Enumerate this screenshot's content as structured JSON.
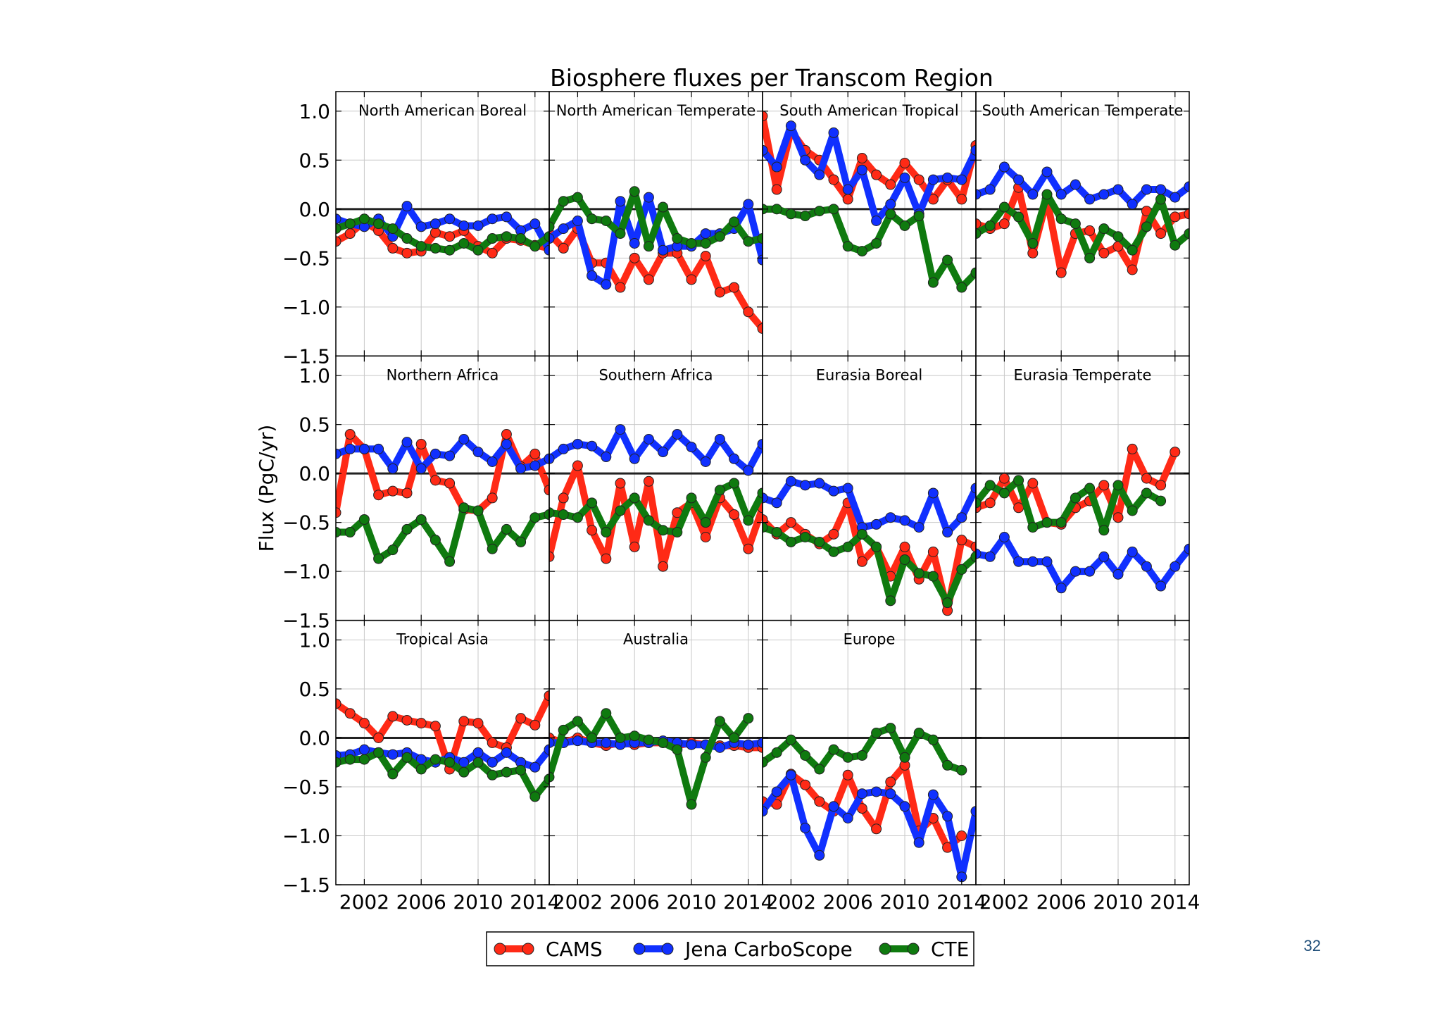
{
  "slide": {
    "page_number": "32"
  },
  "colors": {
    "cams": "#ff2a16",
    "jena": "#1030ff",
    "cte": "#0f7a0f",
    "grid": "#c8c8c8",
    "zero": "#222222"
  },
  "chart_data": {
    "type": "line",
    "title": "Biosphere fluxes per Transcom Region",
    "ylabel": "Flux (PgC/yr)",
    "xlabel": "",
    "ylim": [
      -1.5,
      1.2
    ],
    "xlim": [
      2000,
      2015
    ],
    "yticks": [
      1.0,
      0.5,
      0.0,
      -0.5,
      -1.0,
      -1.5
    ],
    "ytick_labels": [
      "1.0",
      "0.5",
      "0.0",
      "−0.5",
      "−1.0",
      "−1.5"
    ],
    "xticks": [
      2002,
      2006,
      2010,
      2014
    ],
    "xtick_labels": [
      "2002",
      "2006",
      "2010",
      "2014"
    ],
    "grid": true,
    "legend_position": "bottom-center",
    "series_names": [
      "CAMS",
      "Jena CarboScope",
      "CTE"
    ],
    "years": [
      2000,
      2001,
      2002,
      2003,
      2004,
      2005,
      2006,
      2007,
      2008,
      2009,
      2010,
      2011,
      2012,
      2013,
      2014,
      2015
    ],
    "panels": [
      {
        "title": "North American Boreal",
        "series": {
          "CAMS": [
            -0.33,
            -0.25,
            -0.13,
            -0.22,
            -0.4,
            -0.45,
            -0.43,
            -0.24,
            -0.28,
            -0.22,
            -0.38,
            -0.45,
            -0.3,
            -0.32,
            -0.37,
            -0.4
          ],
          "Jena CarboScope": [
            -0.1,
            -0.15,
            -0.18,
            -0.1,
            -0.28,
            0.03,
            -0.18,
            -0.15,
            -0.1,
            -0.17,
            -0.17,
            -0.1,
            -0.08,
            -0.22,
            -0.15,
            -0.42
          ],
          "CTE": [
            -0.2,
            -0.15,
            -0.1,
            -0.15,
            -0.2,
            -0.3,
            -0.38,
            -0.4,
            -0.42,
            -0.35,
            -0.42,
            -0.3,
            -0.28,
            -0.3,
            -0.38,
            -0.28
          ]
        }
      },
      {
        "title": "North American Temperate",
        "series": {
          "CAMS": [
            -0.25,
            -0.4,
            -0.2,
            -0.55,
            -0.55,
            -0.8,
            -0.5,
            -0.72,
            -0.45,
            -0.45,
            -0.72,
            -0.48,
            -0.85,
            -0.8,
            -1.05,
            -1.22
          ],
          "Jena CarboScope": [
            -0.3,
            -0.2,
            -0.12,
            -0.68,
            -0.77,
            0.08,
            -0.35,
            0.12,
            -0.42,
            -0.38,
            -0.38,
            -0.25,
            -0.25,
            -0.2,
            0.05,
            -0.52
          ],
          "CTE": [
            -0.18,
            0.08,
            0.12,
            -0.1,
            -0.12,
            -0.25,
            0.18,
            -0.38,
            0.02,
            -0.3,
            -0.35,
            -0.35,
            -0.28,
            -0.13,
            -0.33,
            -0.3
          ]
        }
      },
      {
        "title": "South American Tropical",
        "series": {
          "CAMS": [
            0.95,
            0.2,
            0.8,
            0.6,
            0.5,
            0.3,
            0.1,
            0.52,
            0.35,
            0.25,
            0.47,
            0.3,
            0.1,
            0.3,
            0.1,
            0.65
          ],
          "Jena CarboScope": [
            0.6,
            0.43,
            0.85,
            0.5,
            0.35,
            0.78,
            0.2,
            0.4,
            -0.12,
            0.05,
            0.32,
            -0.05,
            0.3,
            0.32,
            0.3,
            0.6
          ],
          "CTE": [
            0.0,
            0.0,
            -0.05,
            -0.07,
            -0.02,
            0.0,
            -0.38,
            -0.43,
            -0.35,
            -0.05,
            -0.17,
            -0.07,
            -0.75,
            -0.52,
            -0.8,
            -0.65
          ]
        }
      },
      {
        "title": "South American Temperate",
        "series": {
          "CAMS": [
            -0.15,
            -0.2,
            -0.15,
            0.22,
            -0.45,
            0.1,
            -0.65,
            -0.25,
            -0.22,
            -0.45,
            -0.38,
            -0.62,
            -0.02,
            -0.25,
            -0.08,
            -0.05
          ],
          "Jena CarboScope": [
            0.15,
            0.2,
            0.43,
            0.3,
            0.15,
            0.38,
            0.15,
            0.25,
            0.1,
            0.15,
            0.2,
            0.05,
            0.2,
            0.2,
            0.12,
            0.23
          ],
          "CTE": [
            -0.25,
            -0.17,
            0.02,
            -0.08,
            -0.35,
            0.15,
            -0.1,
            -0.15,
            -0.5,
            -0.2,
            -0.28,
            -0.42,
            -0.18,
            0.1,
            -0.37,
            -0.25
          ]
        }
      },
      {
        "title": "Northern Africa",
        "series": {
          "CAMS": [
            -0.4,
            0.4,
            0.25,
            -0.22,
            -0.18,
            -0.2,
            0.3,
            -0.07,
            -0.1,
            -0.37,
            -0.38,
            -0.25,
            0.4,
            0.07,
            0.2,
            -0.17
          ],
          "Jena CarboScope": [
            0.2,
            0.25,
            0.25,
            0.25,
            0.05,
            0.32,
            0.05,
            0.2,
            0.18,
            0.35,
            0.22,
            0.12,
            0.3,
            0.05,
            0.08,
            0.15
          ],
          "CTE": [
            -0.6,
            -0.6,
            -0.47,
            -0.87,
            -0.78,
            -0.57,
            -0.47,
            -0.68,
            -0.9,
            -0.35,
            -0.38,
            -0.77,
            -0.57,
            -0.7,
            -0.45,
            -0.42
          ]
        }
      },
      {
        "title": "Southern Africa",
        "series": {
          "CAMS": [
            -0.85,
            -0.25,
            0.08,
            -0.58,
            -0.87,
            -0.1,
            -0.75,
            -0.08,
            -0.95,
            -0.4,
            -0.3,
            -0.65,
            -0.25,
            -0.42,
            -0.77,
            -0.35
          ],
          "Jena CarboScope": [
            0.15,
            0.25,
            0.3,
            0.28,
            0.17,
            0.45,
            0.15,
            0.35,
            0.22,
            0.4,
            0.27,
            0.12,
            0.35,
            0.15,
            0.03,
            0.3
          ],
          "CTE": [
            -0.4,
            -0.42,
            -0.45,
            -0.3,
            -0.6,
            -0.38,
            -0.25,
            -0.48,
            -0.58,
            -0.6,
            -0.25,
            -0.5,
            -0.17,
            -0.1,
            -0.48,
            -0.2
          ]
        }
      },
      {
        "title": "Eurasia Boreal",
        "series": {
          "CAMS": [
            -0.47,
            -0.62,
            -0.5,
            -0.62,
            -0.72,
            -0.62,
            -0.3,
            -0.9,
            -0.75,
            -1.05,
            -0.75,
            -1.08,
            -0.8,
            -1.4,
            -0.68,
            -0.75
          ],
          "Jena CarboScope": [
            -0.25,
            -0.3,
            -0.08,
            -0.12,
            -0.1,
            -0.18,
            -0.15,
            -0.55,
            -0.52,
            -0.45,
            -0.48,
            -0.55,
            -0.2,
            -0.6,
            -0.45,
            -0.15
          ],
          "CTE": [
            -0.55,
            -0.6,
            -0.7,
            -0.65,
            -0.7,
            -0.8,
            -0.75,
            -0.62,
            -0.75,
            -1.3,
            -0.88,
            -1.02,
            -1.05,
            -1.32,
            -0.98,
            -0.85
          ]
        }
      },
      {
        "title": "Eurasia Temperate",
        "series": {
          "CAMS": [
            -0.35,
            -0.3,
            -0.05,
            -0.35,
            -0.1,
            -0.5,
            -0.52,
            -0.35,
            -0.28,
            -0.12,
            -0.45,
            0.25,
            -0.05,
            -0.12,
            0.22,
            null
          ],
          "Jena CarboScope": [
            -0.82,
            -0.85,
            -0.65,
            -0.9,
            -0.9,
            -0.9,
            -1.17,
            -1.0,
            -1.0,
            -0.85,
            -1.03,
            -0.8,
            -0.95,
            -1.15,
            -0.95,
            -0.77
          ],
          "CTE": [
            -0.3,
            -0.12,
            -0.2,
            -0.07,
            -0.55,
            -0.5,
            -0.5,
            -0.25,
            -0.15,
            -0.58,
            -0.12,
            -0.38,
            -0.2,
            -0.28,
            null,
            null
          ]
        }
      },
      {
        "title": "Tropical Asia",
        "series": {
          "CAMS": [
            0.35,
            0.25,
            0.15,
            0.0,
            0.22,
            0.18,
            0.15,
            0.12,
            -0.32,
            0.17,
            0.15,
            -0.05,
            -0.1,
            0.2,
            0.13,
            0.43
          ],
          "Jena CarboScope": [
            -0.18,
            -0.17,
            -0.12,
            -0.15,
            -0.17,
            -0.15,
            -0.22,
            -0.25,
            -0.2,
            -0.25,
            -0.15,
            -0.25,
            -0.15,
            -0.25,
            -0.3,
            -0.12
          ],
          "CTE": [
            -0.25,
            -0.22,
            -0.22,
            -0.15,
            -0.37,
            -0.2,
            -0.32,
            -0.22,
            -0.25,
            -0.35,
            -0.25,
            -0.38,
            -0.35,
            -0.33,
            -0.6,
            -0.42
          ]
        }
      },
      {
        "title": "Australia",
        "series": {
          "CAMS": [
            0.0,
            -0.05,
            0.0,
            -0.05,
            -0.08,
            -0.05,
            -0.07,
            -0.05,
            -0.05,
            -0.08,
            -0.05,
            -0.07,
            -0.08,
            -0.08,
            -0.1,
            -0.1
          ],
          "Jena CarboScope": [
            -0.05,
            -0.05,
            -0.03,
            -0.05,
            -0.05,
            -0.07,
            -0.05,
            -0.05,
            -0.03,
            -0.05,
            -0.07,
            -0.07,
            -0.1,
            -0.05,
            -0.07,
            -0.05
          ],
          "CTE": [
            -0.4,
            0.08,
            0.17,
            0.0,
            0.25,
            0.0,
            0.02,
            -0.02,
            -0.05,
            -0.12,
            -0.68,
            -0.2,
            0.17,
            0.0,
            0.2,
            null
          ]
        }
      },
      {
        "title": "Europe",
        "series": {
          "CAMS": [
            -0.65,
            -0.68,
            -0.37,
            -0.48,
            -0.65,
            -0.75,
            -0.38,
            -0.72,
            -0.93,
            -0.45,
            -0.28,
            -0.95,
            -0.82,
            -1.12,
            -1.0,
            null
          ],
          "Jena CarboScope": [
            -0.75,
            -0.55,
            -0.38,
            -0.92,
            -1.2,
            -0.7,
            -0.82,
            -0.57,
            -0.55,
            -0.57,
            -0.7,
            -1.07,
            -0.58,
            -0.8,
            -1.42,
            -0.75
          ],
          "CTE": [
            -0.25,
            -0.15,
            -0.02,
            -0.18,
            -0.32,
            -0.12,
            -0.2,
            -0.18,
            0.05,
            0.1,
            -0.2,
            0.05,
            -0.02,
            -0.28,
            -0.33,
            null
          ]
        }
      },
      {
        "title": "",
        "series": {}
      }
    ]
  }
}
